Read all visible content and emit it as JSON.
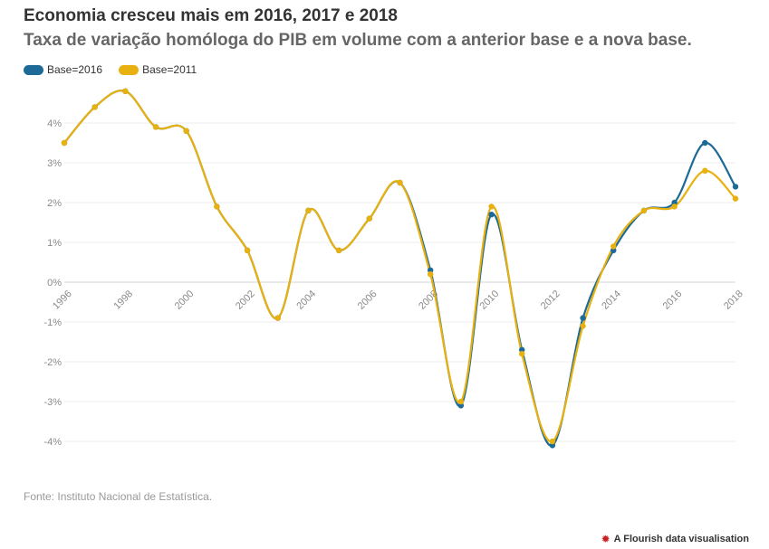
{
  "header": {
    "title": "Economia cresceu mais em 2016, 2017 e 2018",
    "subtitle": "Taxa de variação homóloga do PIB em volume com a anterior base e a nova base."
  },
  "legend": [
    {
      "label": "Base=2016",
      "color": "#1d6a96"
    },
    {
      "label": "Base=2011",
      "color": "#e8b10f"
    }
  ],
  "footer": {
    "source": "Fonte: Instituto Nacional de Estatística.",
    "credit": "A Flourish data visualisation",
    "credit_icon": "flourish-logo-icon"
  },
  "chart_data": {
    "type": "line",
    "title": "Economia cresceu mais em 2016, 2017 e 2018",
    "subtitle": "Taxa de variação homóloga do PIB em volume com a anterior base e a nova base.",
    "xlabel": "",
    "ylabel": "",
    "x": [
      1996,
      1997,
      1998,
      1999,
      2000,
      2001,
      2002,
      2003,
      2004,
      2005,
      2006,
      2007,
      2008,
      2009,
      2010,
      2011,
      2012,
      2013,
      2014,
      2015,
      2016,
      2017,
      2018
    ],
    "xticks": [
      "1996",
      "1998",
      "2000",
      "2002",
      "2004",
      "2006",
      "2008",
      "2010",
      "2012",
      "2014",
      "2016",
      "2018"
    ],
    "ylim": [
      -4.5,
      4.5
    ],
    "yticks": [
      4,
      3,
      2,
      1,
      0,
      -1,
      -2,
      -3,
      -4
    ],
    "ytick_labels": [
      "4%",
      "3%",
      "2%",
      "1%",
      "0%",
      "-1%",
      "-2%",
      "-3%",
      "-4%"
    ],
    "grid": true,
    "legend_position": "top-left",
    "series": [
      {
        "name": "Base=2016",
        "color": "#1d6a96",
        "values": [
          3.5,
          4.4,
          4.8,
          3.9,
          3.8,
          1.9,
          0.8,
          -0.9,
          1.8,
          0.8,
          1.6,
          2.5,
          0.3,
          -3.1,
          1.7,
          -1.7,
          -4.1,
          -0.9,
          0.8,
          1.8,
          2.0,
          3.5,
          2.4
        ]
      },
      {
        "name": "Base=2011",
        "color": "#e8b10f",
        "values": [
          3.5,
          4.4,
          4.8,
          3.9,
          3.8,
          1.9,
          0.8,
          -0.9,
          1.8,
          0.8,
          1.6,
          2.5,
          0.2,
          -3.0,
          1.9,
          -1.8,
          -4.0,
          -1.1,
          0.9,
          1.8,
          1.9,
          2.8,
          2.1
        ]
      }
    ]
  }
}
